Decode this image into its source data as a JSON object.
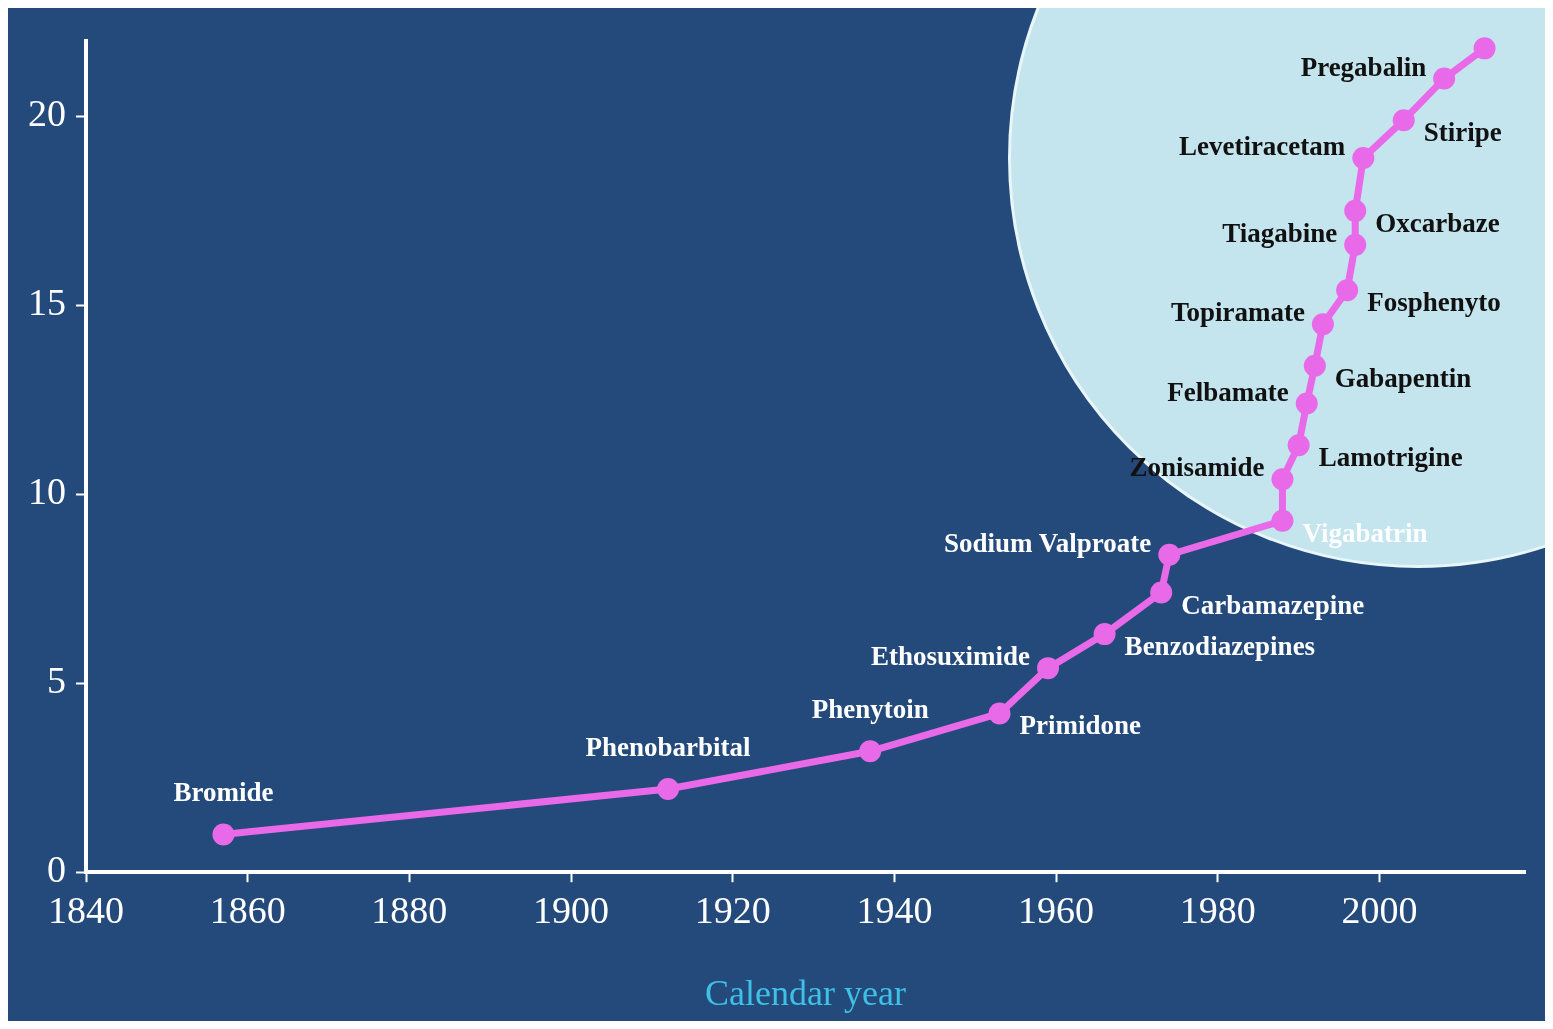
{
  "chart_data": {
    "type": "line",
    "xlabel": "Calendar year",
    "x": [
      1857,
      1912,
      1937,
      1953,
      1959,
      1966,
      1973,
      1974,
      1988,
      1988,
      1990,
      1991,
      1992,
      1993,
      1996,
      1997,
      1997,
      1998,
      2003,
      2008,
      2013
    ],
    "series": [
      {
        "color": "#e86ae8",
        "values": [
          1.0,
          2.2,
          3.2,
          4.2,
          5.4,
          6.3,
          7.4,
          8.4,
          9.3,
          10.4,
          11.3,
          12.4,
          13.4,
          14.5,
          15.4,
          16.6,
          17.5,
          18.9,
          19.9,
          21.0,
          21.8
        ]
      }
    ],
    "xlim": [
      1840,
      2018
    ],
    "xticks": [
      1840,
      1860,
      1880,
      1900,
      1920,
      1940,
      1960,
      1980,
      2000
    ],
    "ylim": [
      0,
      22
    ],
    "yticks": [
      0,
      5,
      10,
      15,
      20
    ],
    "grid": false,
    "legend": false,
    "marker": "circle",
    "line_style": "solid",
    "annotations": [
      {
        "text": "Bromide",
        "x": 1857,
        "y": 1.0
      },
      {
        "text": "Phenobarbital",
        "x": 1912,
        "y": 2.2
      },
      {
        "text": "Phenytoin",
        "x": 1937,
        "y": 3.2
      },
      {
        "text": "Primidone",
        "x": 1953,
        "y": 4.2
      },
      {
        "text": "Ethosuximide",
        "x": 1959,
        "y": 5.4
      },
      {
        "text": "Benzodiazepines",
        "x": 1966,
        "y": 6.3
      },
      {
        "text": "Carbamazepine",
        "x": 1973,
        "y": 7.4
      },
      {
        "text": "Sodium Valproate",
        "x": 1974,
        "y": 8.4
      },
      {
        "text": "Vigabatrin",
        "x": 1988,
        "y": 9.3
      },
      {
        "text": "Zonisamide",
        "x": 1988,
        "y": 10.4
      },
      {
        "text": "Lamotrigine",
        "x": 1990,
        "y": 11.3
      },
      {
        "text": "Felbamate",
        "x": 1991,
        "y": 12.4
      },
      {
        "text": "Gabapentin",
        "x": 1992,
        "y": 13.4
      },
      {
        "text": "Topiramate",
        "x": 1993,
        "y": 14.5
      },
      {
        "text": "Fosphenyto",
        "x": 1996,
        "y": 15.4
      },
      {
        "text": "Tiagabine",
        "x": 1997,
        "y": 16.6
      },
      {
        "text": "Oxcarbaze",
        "x": 1997,
        "y": 17.5
      },
      {
        "text": "Levetiracetam",
        "x": 1998,
        "y": 18.9
      },
      {
        "text": "Stiripe",
        "x": 2003,
        "y": 19.9
      },
      {
        "text": "Pregabalin",
        "x": 2008,
        "y": 21.0
      }
    ]
  }
}
